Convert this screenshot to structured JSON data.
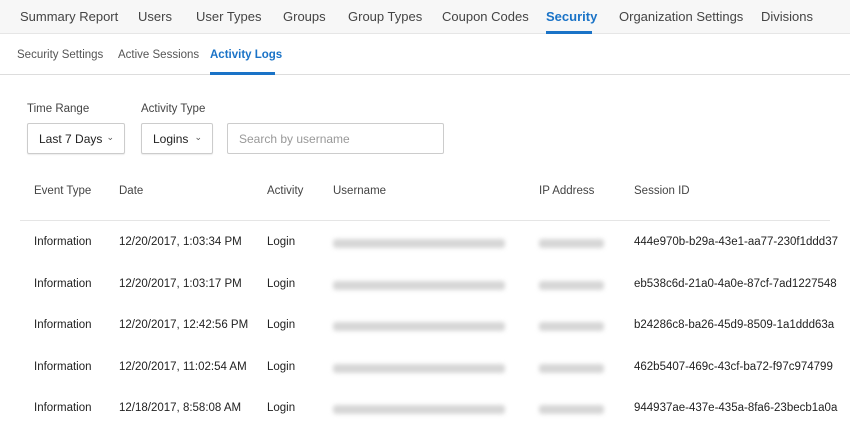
{
  "top_nav": {
    "items": [
      "Summary Report",
      "Users",
      "User Types",
      "Groups",
      "Group Types",
      "Coupon Codes",
      "Security",
      "Organization Settings",
      "Divisions"
    ],
    "active": "Security"
  },
  "sub_nav": {
    "items": [
      "Security Settings",
      "Active Sessions",
      "Activity Logs"
    ],
    "active": "Activity Logs"
  },
  "filters": {
    "time_range_label": "Time Range",
    "time_range_value": "Last 7 Days",
    "activity_type_label": "Activity Type",
    "activity_type_value": "Logins",
    "search_placeholder": "Search by username",
    "search_value": ""
  },
  "table": {
    "headers": [
      "Event Type",
      "Date",
      "Activity",
      "Username",
      "IP Address",
      "Session ID"
    ],
    "rows": [
      {
        "event": "Information",
        "date": "12/20/2017, 1:03:34 PM",
        "activity": "Login",
        "session": "444e970b-b29a-43e1-aa77-230f1ddd37"
      },
      {
        "event": "Information",
        "date": "12/20/2017, 1:03:17 PM",
        "activity": "Login",
        "session": "eb538c6d-21a0-4a0e-87cf-7ad1227548"
      },
      {
        "event": "Information",
        "date": "12/20/2017, 12:42:56 PM",
        "activity": "Login",
        "session": "b24286c8-ba26-45d9-8509-1a1ddd63a"
      },
      {
        "event": "Information",
        "date": "12/20/2017, 11:02:54 AM",
        "activity": "Login",
        "session": "462b5407-469c-43cf-ba72-f97c974799"
      },
      {
        "event": "Information",
        "date": "12/18/2017, 8:58:08 AM",
        "activity": "Login",
        "session": "944937ae-437e-435a-8fa6-23becb1a0a"
      }
    ]
  },
  "colors": {
    "accent": "#1a73c7"
  }
}
